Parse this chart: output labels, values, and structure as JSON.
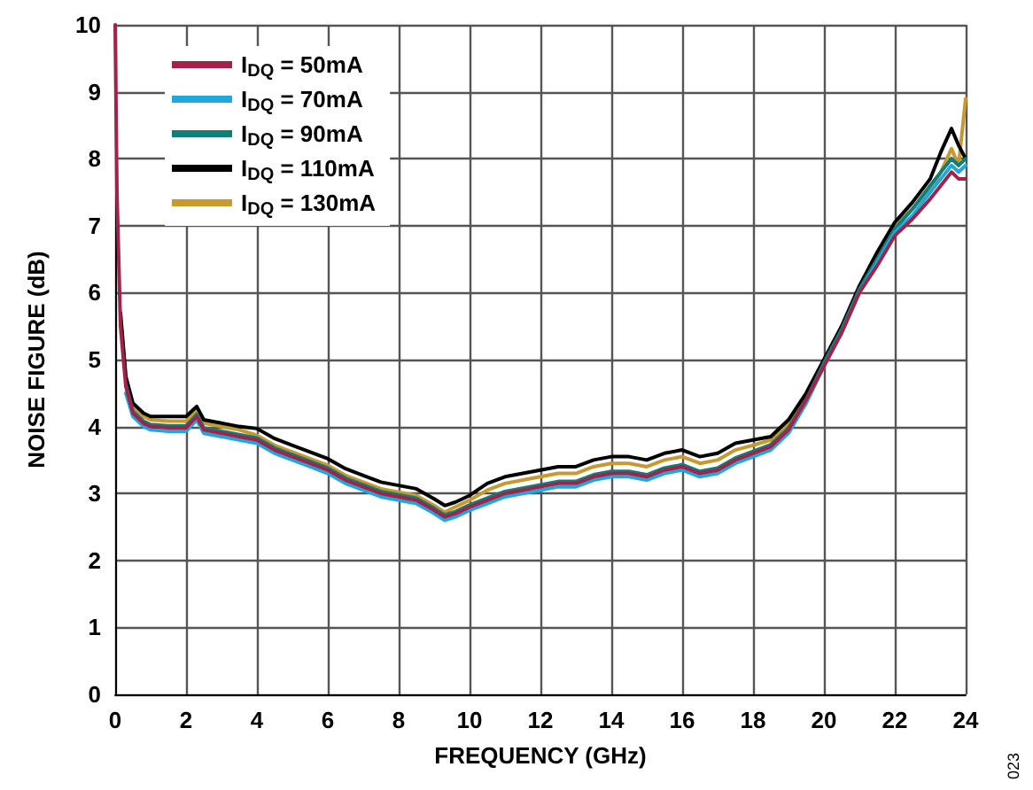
{
  "chart_data": {
    "type": "line",
    "xlabel": "FREQUENCY (GHz)",
    "ylabel": "NOISE FIGURE (dB)",
    "annotations": [
      "023"
    ],
    "x": [
      0,
      0.05,
      0.15,
      0.3,
      0.5,
      0.8,
      1,
      1.5,
      2,
      2.3,
      2.5,
      3,
      3.5,
      4,
      4.5,
      5,
      5.5,
      6,
      6.5,
      7,
      7.5,
      8,
      8.5,
      9,
      9.3,
      9.6,
      10,
      10.5,
      11,
      11.5,
      12,
      12.5,
      13,
      13.5,
      14,
      14.5,
      15,
      15.5,
      16,
      16.5,
      17,
      17.5,
      18,
      18.5,
      19,
      19.5,
      20,
      20.5,
      21,
      21.5,
      22,
      22.5,
      23,
      23.3,
      23.6,
      23.8,
      24
    ],
    "xlim": [
      0,
      24
    ],
    "xticks": [
      0,
      2,
      4,
      6,
      8,
      10,
      12,
      14,
      16,
      18,
      20,
      22,
      24
    ],
    "ylim": [
      0,
      10
    ],
    "yticks": [
      0,
      1,
      2,
      3,
      4,
      5,
      6,
      7,
      8,
      9,
      10
    ],
    "grid": true,
    "legend": "top left",
    "marker": "none",
    "line_style": "solid",
    "series": [
      {
        "name": "I$_{DQ}$ = 50mA",
        "color": "#a3224a",
        "values": [
          10,
          7.5,
          5.5,
          4.6,
          4.2,
          4.05,
          4.0,
          3.98,
          3.98,
          4.15,
          3.95,
          3.9,
          3.85,
          3.8,
          3.65,
          3.55,
          3.45,
          3.35,
          3.2,
          3.1,
          3.0,
          2.95,
          2.9,
          2.75,
          2.65,
          2.7,
          2.8,
          2.9,
          3.0,
          3.05,
          3.1,
          3.15,
          3.15,
          3.25,
          3.3,
          3.3,
          3.25,
          3.35,
          3.4,
          3.3,
          3.35,
          3.5,
          3.6,
          3.7,
          3.95,
          4.4,
          4.9,
          5.4,
          6.0,
          6.4,
          6.85,
          7.1,
          7.4,
          7.6,
          7.8,
          7.7,
          7.7
        ]
      },
      {
        "name": "I$_{DQ}$ = 70mA",
        "color": "#1fa8e0",
        "values": [
          null,
          null,
          null,
          4.5,
          4.15,
          4.0,
          3.95,
          3.93,
          3.93,
          4.1,
          3.9,
          3.85,
          3.8,
          3.75,
          3.6,
          3.5,
          3.4,
          3.3,
          3.15,
          3.05,
          2.95,
          2.9,
          2.85,
          2.7,
          2.6,
          2.65,
          2.75,
          2.85,
          2.95,
          3.0,
          3.05,
          3.1,
          3.1,
          3.2,
          3.25,
          3.25,
          3.2,
          3.3,
          3.35,
          3.25,
          3.3,
          3.45,
          3.55,
          3.65,
          3.9,
          4.35,
          4.9,
          5.4,
          6.0,
          6.45,
          6.9,
          7.15,
          7.5,
          7.7,
          7.9,
          7.8,
          7.9
        ]
      },
      {
        "name": "I$_{DQ}$ = 90mA",
        "color": "#0f7f7a",
        "values": [
          null,
          null,
          null,
          4.63,
          4.23,
          4.08,
          4.03,
          4.01,
          4.01,
          4.18,
          3.98,
          3.93,
          3.88,
          3.83,
          3.68,
          3.58,
          3.48,
          3.38,
          3.23,
          3.13,
          3.03,
          2.98,
          2.93,
          2.78,
          2.68,
          2.73,
          2.83,
          2.93,
          3.03,
          3.08,
          3.13,
          3.18,
          3.18,
          3.28,
          3.33,
          3.33,
          3.28,
          3.38,
          3.43,
          3.33,
          3.38,
          3.53,
          3.63,
          3.73,
          3.98,
          4.4,
          4.95,
          5.45,
          6.05,
          6.5,
          6.95,
          7.25,
          7.6,
          7.8,
          8.0,
          7.9,
          8.0
        ]
      },
      {
        "name": "I$_{DQ}$ = 110mA",
        "color": "#000000",
        "values": [
          null,
          null,
          5.7,
          4.75,
          4.35,
          4.2,
          4.15,
          4.15,
          4.15,
          4.3,
          4.1,
          4.05,
          4.0,
          3.97,
          3.82,
          3.72,
          3.62,
          3.52,
          3.37,
          3.27,
          3.17,
          3.12,
          3.07,
          2.92,
          2.82,
          2.87,
          2.97,
          3.15,
          3.25,
          3.3,
          3.35,
          3.4,
          3.4,
          3.5,
          3.55,
          3.55,
          3.5,
          3.6,
          3.65,
          3.55,
          3.6,
          3.75,
          3.8,
          3.85,
          4.1,
          4.5,
          5.0,
          5.5,
          6.1,
          6.6,
          7.05,
          7.35,
          7.7,
          8.1,
          8.45,
          8.2,
          8.0
        ]
      },
      {
        "name": "I$_{DQ}$ = 130mA",
        "color": "#c8992e",
        "values": [
          null,
          null,
          5.6,
          4.7,
          4.3,
          4.15,
          4.1,
          4.08,
          4.08,
          4.25,
          4.05,
          4.0,
          3.95,
          3.87,
          3.72,
          3.62,
          3.52,
          3.42,
          3.27,
          3.17,
          3.07,
          3.02,
          2.97,
          2.82,
          2.72,
          2.8,
          2.9,
          3.05,
          3.15,
          3.2,
          3.25,
          3.3,
          3.3,
          3.4,
          3.45,
          3.45,
          3.4,
          3.5,
          3.55,
          3.45,
          3.5,
          3.65,
          3.72,
          3.8,
          4.05,
          4.45,
          4.95,
          5.45,
          6.05,
          6.55,
          7.0,
          7.25,
          7.55,
          7.8,
          8.15,
          7.9,
          8.9
        ]
      }
    ]
  }
}
